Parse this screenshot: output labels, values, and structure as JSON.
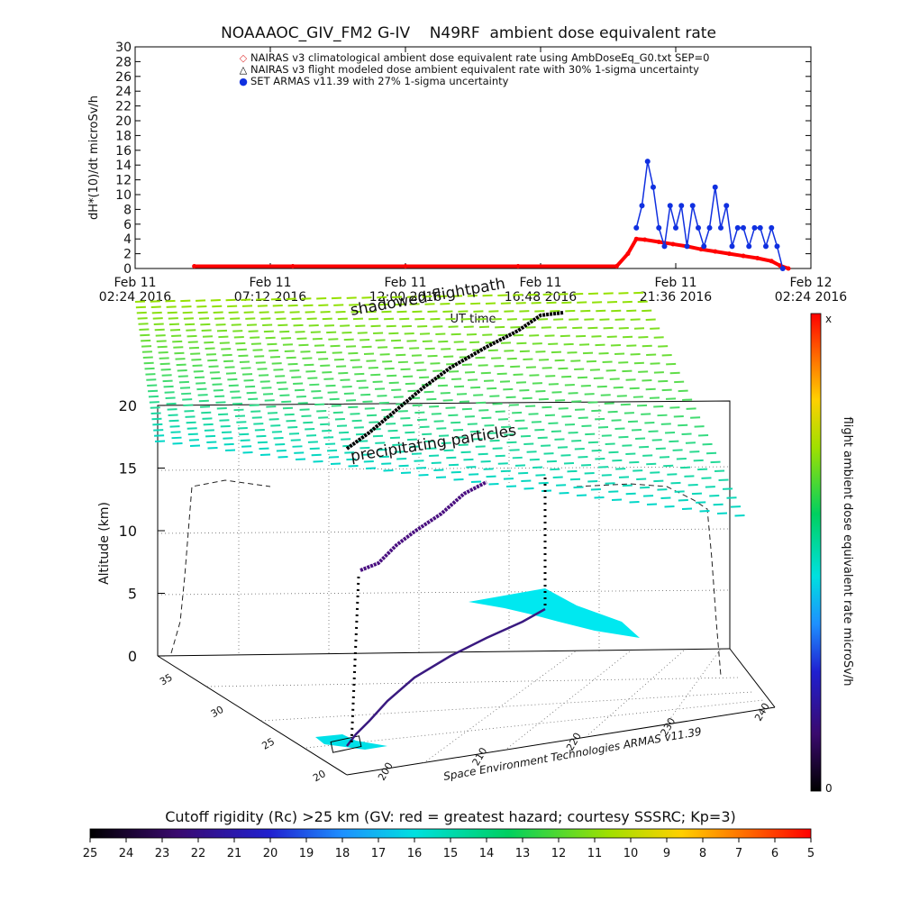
{
  "chart_data": [
    {
      "type": "line",
      "title": "NOAAAOC_GIV_FM2 G-IV    N49RF  ambient dose equivalent rate",
      "ylabel": "dH*(10)/dt microSv/h",
      "xlabel": "UT time",
      "ylim": [
        0,
        30
      ],
      "yticks": [
        0,
        2,
        4,
        6,
        8,
        10,
        12,
        14,
        16,
        18,
        20,
        22,
        24,
        26,
        28,
        30
      ],
      "xtick_labels": [
        {
          "day": "Feb 11",
          "time": "02:24 2016"
        },
        {
          "day": "Feb 11",
          "time": "07:12 2016"
        },
        {
          "day": "Feb 11",
          "time": "12:00 2016"
        },
        {
          "day": "Feb 11",
          "time": "16:48 2016"
        },
        {
          "day": "Feb 11",
          "time": "21:36 2016"
        },
        {
          "day": "Feb 12",
          "time": "02:24 2016"
        }
      ],
      "legend": [
        {
          "marker": "◇",
          "color": "#e04040",
          "text": "NAIRAS v3 climatological ambient dose equivalent rate using AmbDoseEq_G0.txt SEP=0"
        },
        {
          "marker": "△",
          "color": "#000000",
          "text": "NAIRAS v3 flight modeled dose ambient equivalent rate with 30% 1-sigma uncertainty"
        },
        {
          "marker": "●",
          "color": "#1030e0",
          "text": "SET ARMAS v11.39 with 27% 1-sigma uncertainty"
        }
      ],
      "series": [
        {
          "name": "NAIRAS v3 climatological",
          "color": "#ff0000",
          "x_hours": [
            4.5,
            8,
            12,
            16,
            19.5,
            19.9,
            20.2,
            20.5,
            21,
            21.5,
            22,
            22.5,
            23,
            23.5,
            24,
            24.5,
            25,
            25.3,
            25.6
          ],
          "values": [
            0.3,
            0.3,
            0.3,
            0.3,
            0.3,
            2.0,
            4.0,
            3.9,
            3.6,
            3.3,
            3.0,
            2.6,
            2.3,
            2.0,
            1.7,
            1.4,
            1.0,
            0.4,
            0
          ]
        },
        {
          "name": "SET ARMAS v11.39",
          "color": "#1030e0",
          "x_hours": [
            20.2,
            20.4,
            20.6,
            20.8,
            21.0,
            21.2,
            21.4,
            21.6,
            21.8,
            22.0,
            22.2,
            22.4,
            22.6,
            22.8,
            23.0,
            23.2,
            23.4,
            23.6,
            23.8,
            24.0,
            24.2,
            24.4,
            24.6,
            24.8,
            25.0,
            25.2,
            25.4
          ],
          "values": [
            5.5,
            8.5,
            14.5,
            11,
            5.5,
            3,
            8.5,
            5.5,
            8.5,
            3,
            8.5,
            5.5,
            3,
            5.5,
            11,
            5.5,
            8.5,
            3,
            5.5,
            5.5,
            3,
            5.5,
            5.5,
            3,
            5.5,
            3,
            0
          ]
        }
      ]
    },
    {
      "type": "scatter",
      "title": "",
      "annotations": [
        "shadowed flightpath",
        "precipitating particles"
      ],
      "zlabel": "Altitude (km)",
      "zticks": [
        0,
        5,
        10,
        15,
        20
      ],
      "lat_ticks": [
        35,
        30,
        25,
        20
      ],
      "lon_ticks": [
        200,
        210,
        220,
        230,
        240
      ],
      "credit": "Space Environment Technologies ARMAS v11.39",
      "colorbar": {
        "label": "flight ambient dose equivalent rate microSv/h",
        "max_label": "x",
        "min_label": "0"
      }
    },
    {
      "type": "heatmap",
      "title": "Cutoff rigidity (Rc) >25 km (GV: red = greatest hazard; courtesy SSSRC; Kp=3)",
      "tick_labels": [
        "25",
        "24",
        "23",
        "22",
        "21",
        "20",
        "19",
        "18",
        "17",
        "16",
        "15",
        "14",
        "13",
        "12",
        "11",
        "10",
        "9",
        "8",
        "7",
        "6",
        "5"
      ]
    }
  ]
}
